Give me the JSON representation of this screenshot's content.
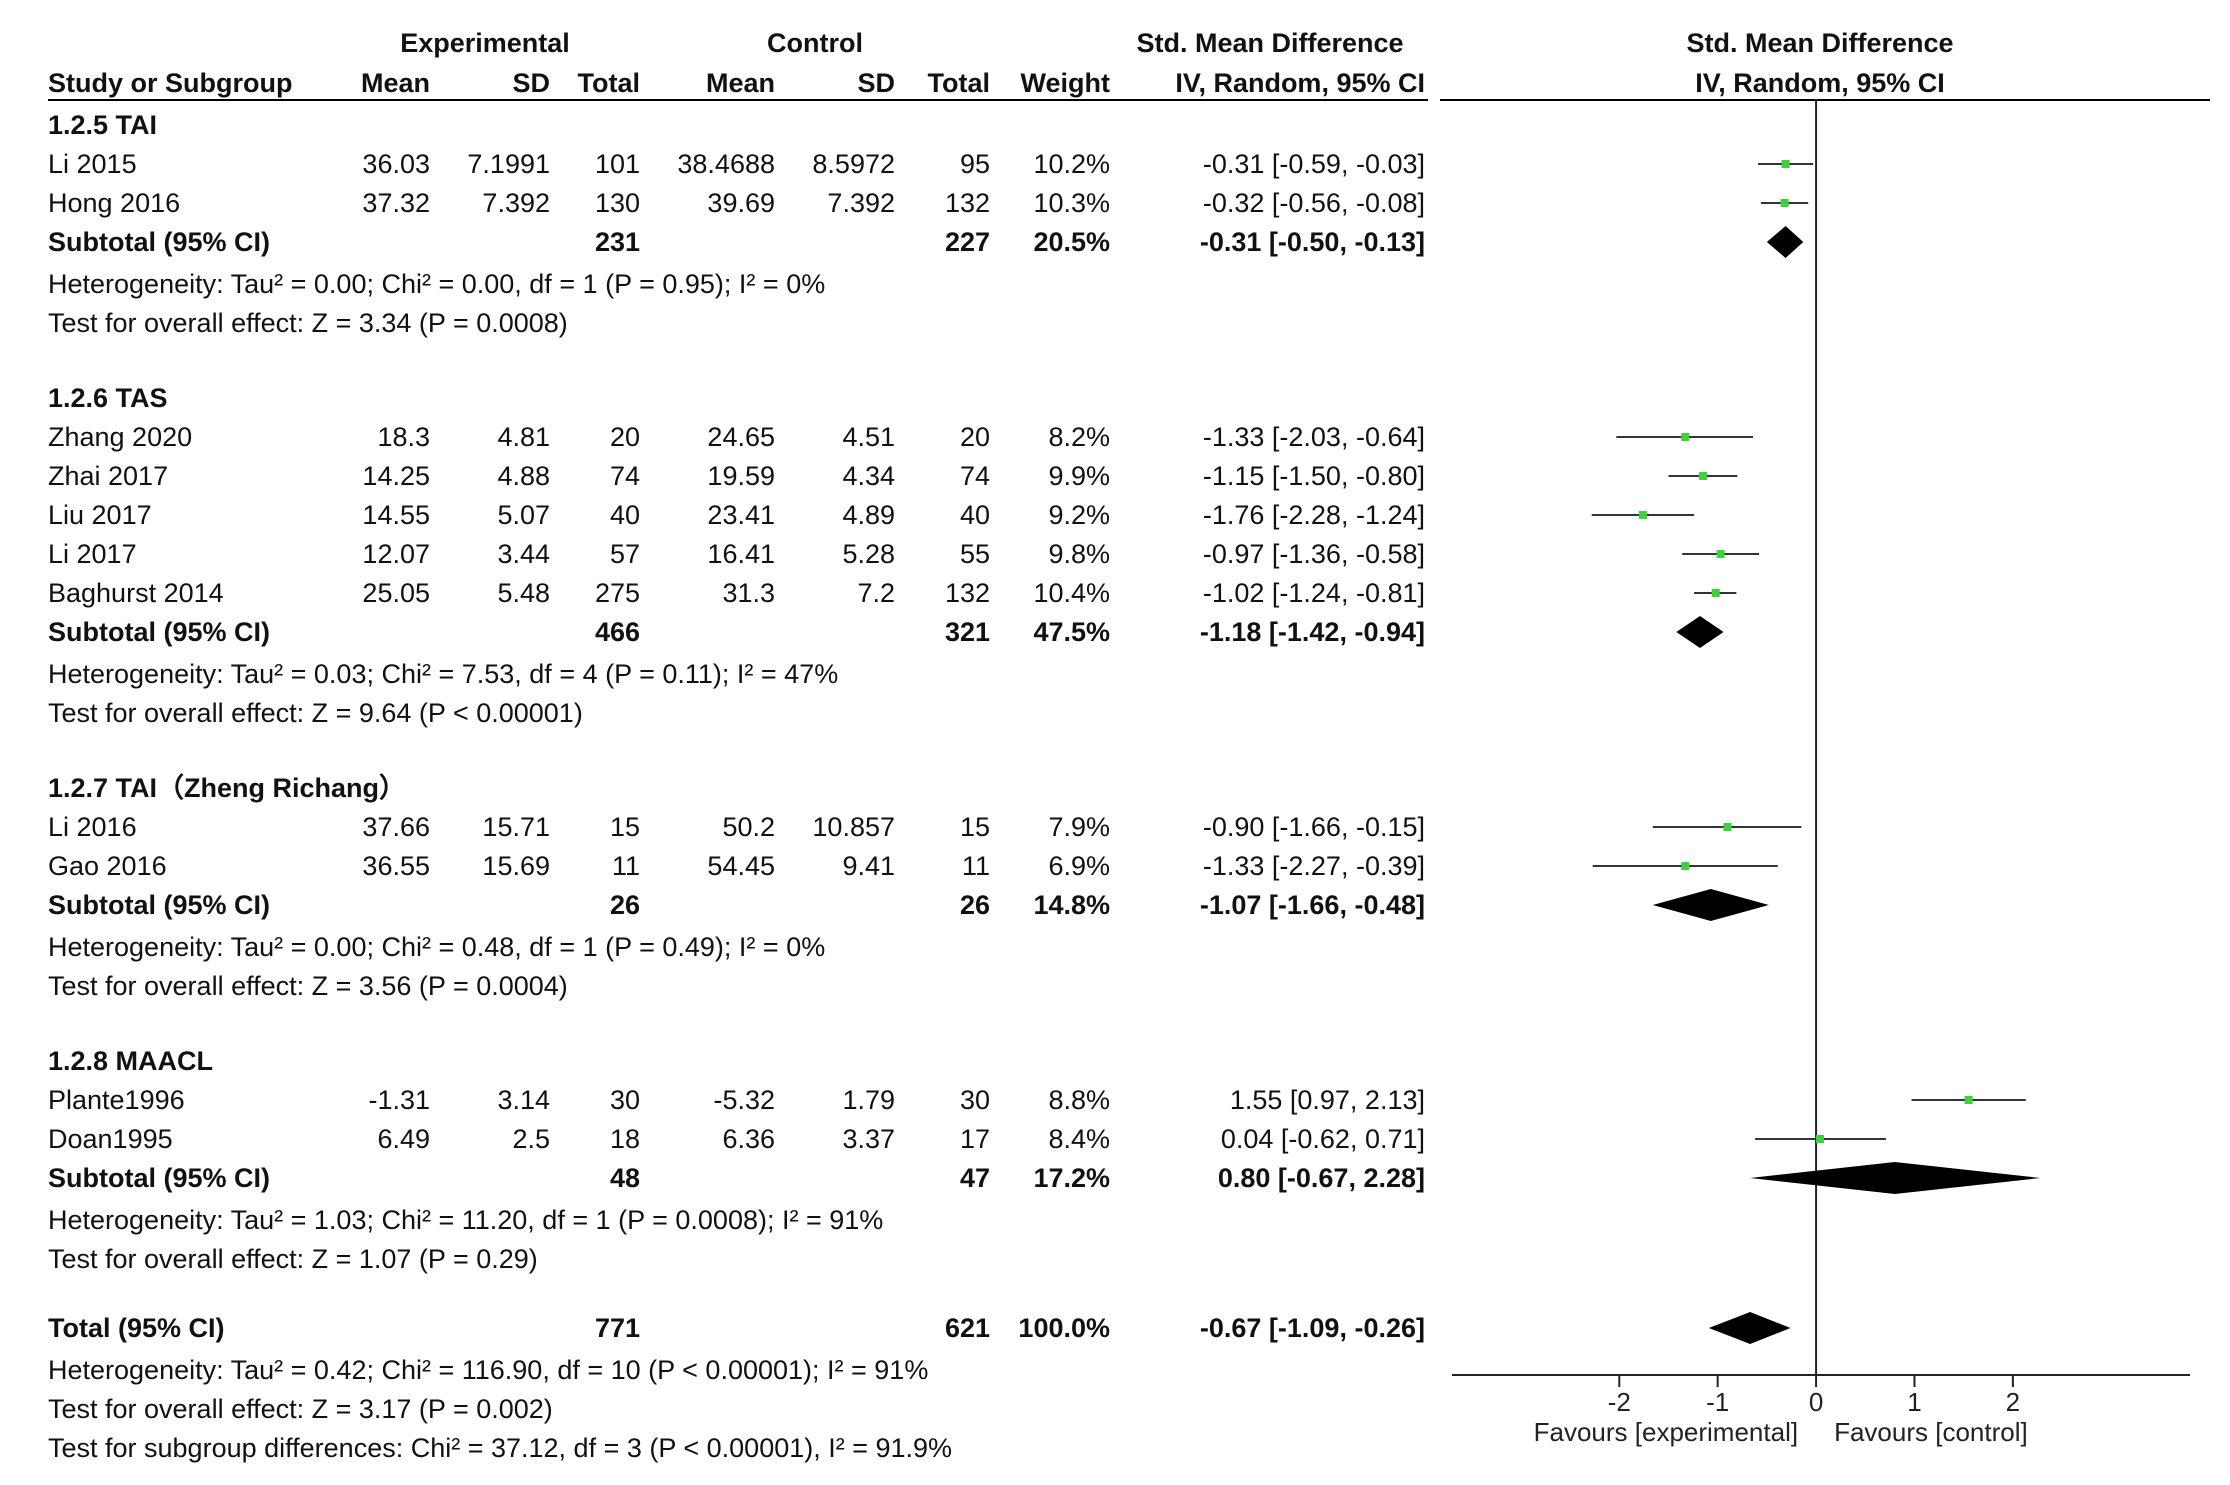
{
  "header": {
    "col_study": "Study or Subgroup",
    "group_experimental": "Experimental",
    "group_control": "Control",
    "col_mean": "Mean",
    "col_sd": "SD",
    "col_total": "Total",
    "col_weight": "Weight",
    "effect_title": "Std. Mean Difference",
    "effect_subtitle": "IV, Random, 95% CI",
    "plot_title": "Std. Mean Difference",
    "plot_subtitle": "IV, Random, 95% CI"
  },
  "subgroups": [
    {
      "title": "1.2.5 TAI",
      "studies": [
        {
          "name": "Li 2015",
          "e_mean": "36.03",
          "e_sd": "7.1991",
          "e_total": "101",
          "c_mean": "38.4688",
          "c_sd": "8.5972",
          "c_total": "95",
          "weight": "10.2%",
          "ci": "-0.31 [-0.59, -0.03]"
        },
        {
          "name": "Hong 2016",
          "e_mean": "37.32",
          "e_sd": "7.392",
          "e_total": "130",
          "c_mean": "39.69",
          "c_sd": "7.392",
          "c_total": "132",
          "weight": "10.3%",
          "ci": "-0.32 [-0.56, -0.08]"
        }
      ],
      "subtotal": {
        "label": "Subtotal (95% CI)",
        "e_total": "231",
        "c_total": "227",
        "weight": "20.5%",
        "ci": "-0.31 [-0.50, -0.13]"
      },
      "heterogeneity": "Heterogeneity: Tau² = 0.00; Chi² = 0.00, df = 1 (P = 0.95); I² = 0%",
      "overall": "Test for overall effect: Z = 3.34 (P = 0.0008)"
    },
    {
      "title": "1.2.6 TAS",
      "studies": [
        {
          "name": "Zhang 2020",
          "e_mean": "18.3",
          "e_sd": "4.81",
          "e_total": "20",
          "c_mean": "24.65",
          "c_sd": "4.51",
          "c_total": "20",
          "weight": "8.2%",
          "ci": "-1.33 [-2.03, -0.64]"
        },
        {
          "name": "Zhai 2017",
          "e_mean": "14.25",
          "e_sd": "4.88",
          "e_total": "74",
          "c_mean": "19.59",
          "c_sd": "4.34",
          "c_total": "74",
          "weight": "9.9%",
          "ci": "-1.15 [-1.50, -0.80]"
        },
        {
          "name": "Liu 2017",
          "e_mean": "14.55",
          "e_sd": "5.07",
          "e_total": "40",
          "c_mean": "23.41",
          "c_sd": "4.89",
          "c_total": "40",
          "weight": "9.2%",
          "ci": "-1.76 [-2.28, -1.24]"
        },
        {
          "name": "Li 2017",
          "e_mean": "12.07",
          "e_sd": "3.44",
          "e_total": "57",
          "c_mean": "16.41",
          "c_sd": "5.28",
          "c_total": "55",
          "weight": "9.8%",
          "ci": "-0.97 [-1.36, -0.58]"
        },
        {
          "name": "Baghurst 2014",
          "e_mean": "25.05",
          "e_sd": "5.48",
          "e_total": "275",
          "c_mean": "31.3",
          "c_sd": "7.2",
          "c_total": "132",
          "weight": "10.4%",
          "ci": "-1.02 [-1.24, -0.81]"
        }
      ],
      "subtotal": {
        "label": "Subtotal (95% CI)",
        "e_total": "466",
        "c_total": "321",
        "weight": "47.5%",
        "ci": "-1.18 [-1.42, -0.94]"
      },
      "heterogeneity": "Heterogeneity: Tau² = 0.03; Chi² = 7.53, df = 4 (P = 0.11); I² = 47%",
      "overall": "Test for overall effect: Z = 9.64 (P < 0.00001)"
    },
    {
      "title": "1.2.7 TAI（Zheng Richang）",
      "studies": [
        {
          "name": "Li 2016",
          "e_mean": "37.66",
          "e_sd": "15.71",
          "e_total": "15",
          "c_mean": "50.2",
          "c_sd": "10.857",
          "c_total": "15",
          "weight": "7.9%",
          "ci": "-0.90 [-1.66, -0.15]"
        },
        {
          "name": "Gao 2016",
          "e_mean": "36.55",
          "e_sd": "15.69",
          "e_total": "11",
          "c_mean": "54.45",
          "c_sd": "9.41",
          "c_total": "11",
          "weight": "6.9%",
          "ci": "-1.33 [-2.27, -0.39]"
        }
      ],
      "subtotal": {
        "label": "Subtotal (95% CI)",
        "e_total": "26",
        "c_total": "26",
        "weight": "14.8%",
        "ci": "-1.07 [-1.66, -0.48]"
      },
      "heterogeneity": "Heterogeneity: Tau² = 0.00; Chi² = 0.48, df = 1 (P = 0.49); I² = 0%",
      "overall": "Test for overall effect: Z = 3.56 (P = 0.0004)"
    },
    {
      "title": "1.2.8 MAACL",
      "studies": [
        {
          "name": "Plante1996",
          "e_mean": "-1.31",
          "e_sd": "3.14",
          "e_total": "30",
          "c_mean": "-5.32",
          "c_sd": "1.79",
          "c_total": "30",
          "weight": "8.8%",
          "ci": "1.55 [0.97, 2.13]"
        },
        {
          "name": "Doan1995",
          "e_mean": "6.49",
          "e_sd": "2.5",
          "e_total": "18",
          "c_mean": "6.36",
          "c_sd": "3.37",
          "c_total": "17",
          "weight": "8.4%",
          "ci": "0.04 [-0.62, 0.71]"
        }
      ],
      "subtotal": {
        "label": "Subtotal (95% CI)",
        "e_total": "48",
        "c_total": "47",
        "weight": "17.2%",
        "ci": "0.80 [-0.67, 2.28]"
      },
      "heterogeneity": "Heterogeneity: Tau² = 1.03; Chi² = 11.20, df = 1 (P = 0.0008); I² = 91%",
      "overall": "Test for overall effect: Z = 1.07 (P = 0.29)"
    }
  ],
  "total": {
    "label": "Total (95% CI)",
    "e_total": "771",
    "c_total": "621",
    "weight": "100.0%",
    "ci": "-0.67 [-1.09, -0.26]",
    "heterogeneity": "Heterogeneity: Tau² = 0.42; Chi² = 116.90, df = 10 (P < 0.00001); I² = 91%",
    "overall": "Test for overall effect: Z = 3.17 (P = 0.002)",
    "subgroup_diff": "Test for subgroup differences: Chi² = 37.12, df = 3 (P < 0.00001), I² = 91.9%"
  },
  "chart_data": {
    "type": "forest",
    "title": "Std. Mean Difference",
    "subtitle": "IV, Random, 95% CI",
    "xlim": [
      -3.7,
      3.8
    ],
    "xticks": [
      -2,
      -1,
      0,
      1,
      2
    ],
    "xtick_labels": [
      "-2",
      "-1",
      "0",
      "1",
      "2"
    ],
    "left_label": "Favours [experimental]",
    "right_label": "Favours [control]",
    "marker_color": "#3dd13d",
    "studies": [
      {
        "name": "Li 2015",
        "est": -0.31,
        "lo": -0.59,
        "hi": -0.03
      },
      {
        "name": "Hong 2016",
        "est": -0.32,
        "lo": -0.56,
        "hi": -0.08
      },
      {
        "name": "Zhang 2020",
        "est": -1.33,
        "lo": -2.03,
        "hi": -0.64
      },
      {
        "name": "Zhai 2017",
        "est": -1.15,
        "lo": -1.5,
        "hi": -0.8
      },
      {
        "name": "Liu 2017",
        "est": -1.76,
        "lo": -2.28,
        "hi": -1.24
      },
      {
        "name": "Li 2017",
        "est": -0.97,
        "lo": -1.36,
        "hi": -0.58
      },
      {
        "name": "Baghurst 2014",
        "est": -1.02,
        "lo": -1.24,
        "hi": -0.81
      },
      {
        "name": "Li 2016",
        "est": -0.9,
        "lo": -1.66,
        "hi": -0.15
      },
      {
        "name": "Gao 2016",
        "est": -1.33,
        "lo": -2.27,
        "hi": -0.39
      },
      {
        "name": "Plante1996",
        "est": 1.55,
        "lo": 0.97,
        "hi": 2.13
      },
      {
        "name": "Doan1995",
        "est": 0.04,
        "lo": -0.62,
        "hi": 0.71
      }
    ],
    "subtotals": [
      {
        "name": "1.2.5 TAI",
        "est": -0.31,
        "lo": -0.5,
        "hi": -0.13
      },
      {
        "name": "1.2.6 TAS",
        "est": -1.18,
        "lo": -1.42,
        "hi": -0.94
      },
      {
        "name": "1.2.7 TAI（Zheng Richang）",
        "est": -1.07,
        "lo": -1.66,
        "hi": -0.48
      },
      {
        "name": "1.2.8 MAACL",
        "est": 0.8,
        "lo": -0.67,
        "hi": 2.28
      }
    ],
    "overall": {
      "name": "Total (95% CI)",
      "est": -0.67,
      "lo": -1.09,
      "hi": -0.26
    }
  }
}
